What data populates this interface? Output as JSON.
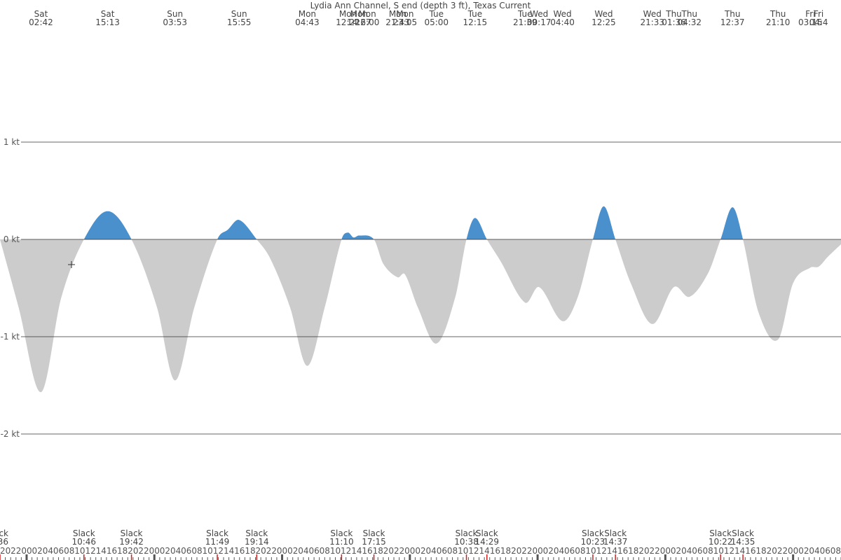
{
  "chart_data": {
    "type": "area",
    "title": "Lydia Ann Channel, S end (depth 3 ft), Texas Current",
    "unit": "kt",
    "ylim": [
      -2.8,
      2.5
    ],
    "yticks": [
      {
        "value": 1,
        "label": "1 kt"
      },
      {
        "value": 0,
        "label": "0 kt"
      },
      {
        "value": -1,
        "label": "-1 kt"
      },
      {
        "value": -2,
        "label": "-2 kt"
      }
    ],
    "grid": true,
    "colors": {
      "flood": "#4a90cc",
      "ebb": "#cccccc",
      "gridline": "#333333",
      "text": "#444444",
      "tick_dark": "#555555",
      "tick_red": "#cc2222"
    },
    "start_hour": 19,
    "hours_span": 158.0,
    "top_events": [
      {
        "day": "Sat",
        "time": "02:42",
        "h": 26.7
      },
      {
        "day": "Sat",
        "time": "15:13",
        "h": 39.22
      },
      {
        "day": "Sun",
        "time": "03:53",
        "h": 51.88
      },
      {
        "day": "Sun",
        "time": "15:55",
        "h": 63.92
      },
      {
        "day": "Mon",
        "time": "04:43",
        "h": 76.72
      },
      {
        "day": "Mon",
        "time": "12:22",
        "h": 84.37
      },
      {
        "day": "Mon",
        "time": "14:27",
        "h": 86.45
      },
      {
        "day": "Mon",
        "time": "16:00",
        "h": 88.0
      },
      {
        "day": "Mon",
        "time": "21:43",
        "h": 93.72
      },
      {
        "day": "Mon",
        "time": "23:05",
        "h": 95.08
      },
      {
        "day": "Tue",
        "time": "05:00",
        "h": 101.0
      },
      {
        "day": "Tue",
        "time": "12:15",
        "h": 108.25
      },
      {
        "day": "Tue",
        "time": "21:39",
        "h": 117.65
      },
      {
        "day": "Wed",
        "time": "00:17",
        "h": 120.28
      },
      {
        "day": "Wed",
        "time": "04:40",
        "h": 124.67
      },
      {
        "day": "Wed",
        "time": "12:25",
        "h": 132.42
      },
      {
        "day": "Wed",
        "time": "21:33",
        "h": 141.55
      },
      {
        "day": "Thu",
        "time": "01:36",
        "h": 145.6
      },
      {
        "day": "Thu",
        "time": "04:32",
        "h": 148.53
      },
      {
        "day": "Thu",
        "time": "12:37",
        "h": 156.62
      },
      {
        "day": "Thu",
        "time": "21:10",
        "h": 165.17
      },
      {
        "day": "Fri",
        "time": "03:15",
        "h": 171.25
      },
      {
        "day": "Fri",
        "time": "04:4",
        "h": 172.8
      }
    ],
    "slack_events": [
      {
        "label": "ck",
        "time": "36",
        "h": 19.0
      },
      {
        "label": "Slack",
        "time": "10:46",
        "h": 34.77
      },
      {
        "label": "Slack",
        "time": "19:42",
        "h": 43.7
      },
      {
        "label": "Slack",
        "time": "11:49",
        "h": 59.82
      },
      {
        "label": "Slack",
        "time": "19:14",
        "h": 67.23
      },
      {
        "label": "Slack",
        "time": "11:10",
        "h": 83.17
      },
      {
        "label": "Slack",
        "time": "17:15",
        "h": 89.25
      },
      {
        "label": "Slack",
        "time": "10:38",
        "h": 106.63
      },
      {
        "label": "Slack",
        "time": "14:29",
        "h": 110.48
      },
      {
        "label": "Slack",
        "time": "10:23",
        "h": 130.38
      },
      {
        "label": "Slack",
        "time": "14:37",
        "h": 134.62
      },
      {
        "label": "Slack",
        "time": "10:22",
        "h": 154.37
      },
      {
        "label": "Slack",
        "time": "14:35",
        "h": 158.58
      }
    ],
    "series_points": [
      [
        19.0,
        0.0
      ],
      [
        22.5,
        -0.7
      ],
      [
        26.7,
        -1.57
      ],
      [
        30.5,
        -0.6
      ],
      [
        34.77,
        0.0
      ],
      [
        39.22,
        0.29
      ],
      [
        43.7,
        0.0
      ],
      [
        48.5,
        -0.7
      ],
      [
        51.88,
        -1.45
      ],
      [
        55.5,
        -0.7
      ],
      [
        59.82,
        0.0
      ],
      [
        61.8,
        0.1
      ],
      [
        63.92,
        0.2
      ],
      [
        67.23,
        0.0
      ],
      [
        69.8,
        -0.2
      ],
      [
        73.5,
        -0.7
      ],
      [
        76.72,
        -1.3
      ],
      [
        80.0,
        -0.7
      ],
      [
        83.17,
        0.0
      ],
      [
        84.37,
        0.07
      ],
      [
        85.4,
        0.02
      ],
      [
        86.45,
        0.04
      ],
      [
        89.25,
        0.0
      ],
      [
        91.0,
        -0.25
      ],
      [
        93.72,
        -0.39
      ],
      [
        95.08,
        -0.36
      ],
      [
        97.5,
        -0.7
      ],
      [
        101.0,
        -1.07
      ],
      [
        104.5,
        -0.6
      ],
      [
        106.63,
        0.0
      ],
      [
        108.25,
        0.22
      ],
      [
        110.48,
        0.0
      ],
      [
        113.0,
        -0.22
      ],
      [
        117.65,
        -0.65
      ],
      [
        120.28,
        -0.49
      ],
      [
        124.67,
        -0.84
      ],
      [
        127.5,
        -0.6
      ],
      [
        130.38,
        0.0
      ],
      [
        132.42,
        0.34
      ],
      [
        134.62,
        0.0
      ],
      [
        137.5,
        -0.45
      ],
      [
        141.55,
        -0.87
      ],
      [
        145.6,
        -0.49
      ],
      [
        148.53,
        -0.59
      ],
      [
        152.0,
        -0.35
      ],
      [
        154.37,
        0.0
      ],
      [
        156.62,
        0.33
      ],
      [
        158.58,
        0.0
      ],
      [
        161.5,
        -0.75
      ],
      [
        165.17,
        -1.03
      ],
      [
        168.0,
        -0.45
      ],
      [
        171.25,
        -0.29
      ],
      [
        172.8,
        -0.28
      ],
      [
        174.5,
        -0.18
      ],
      [
        177.0,
        -0.05
      ]
    ]
  }
}
